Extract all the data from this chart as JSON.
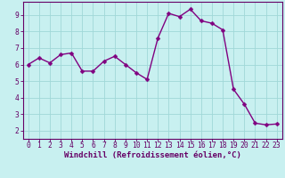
{
  "x": [
    0,
    1,
    2,
    3,
    4,
    5,
    6,
    7,
    8,
    9,
    10,
    11,
    12,
    13,
    14,
    15,
    16,
    17,
    18,
    19,
    20,
    21,
    22,
    23
  ],
  "y": [
    6.0,
    6.4,
    6.1,
    6.6,
    6.7,
    5.6,
    5.6,
    6.2,
    6.5,
    6.0,
    5.5,
    5.1,
    7.6,
    9.1,
    8.9,
    9.35,
    8.65,
    8.5,
    8.1,
    4.5,
    3.6,
    2.45,
    2.35,
    2.4
  ],
  "line_color": "#800080",
  "marker": "D",
  "marker_size": 2.5,
  "bg_color": "#C8F0F0",
  "grid_color": "#A0D8D8",
  "xlabel": "Windchill (Refroidissement éolien,°C)",
  "xlim": [
    -0.5,
    23.5
  ],
  "ylim": [
    1.5,
    9.8
  ],
  "yticks": [
    2,
    3,
    4,
    5,
    6,
    7,
    8,
    9
  ],
  "xticks": [
    0,
    1,
    2,
    3,
    4,
    5,
    6,
    7,
    8,
    9,
    10,
    11,
    12,
    13,
    14,
    15,
    16,
    17,
    18,
    19,
    20,
    21,
    22,
    23
  ],
  "tick_color": "#660066",
  "label_fontsize": 6.5,
  "tick_fontsize": 5.8,
  "spine_color": "#660066",
  "line_width": 1.0,
  "font_family": "monospace"
}
